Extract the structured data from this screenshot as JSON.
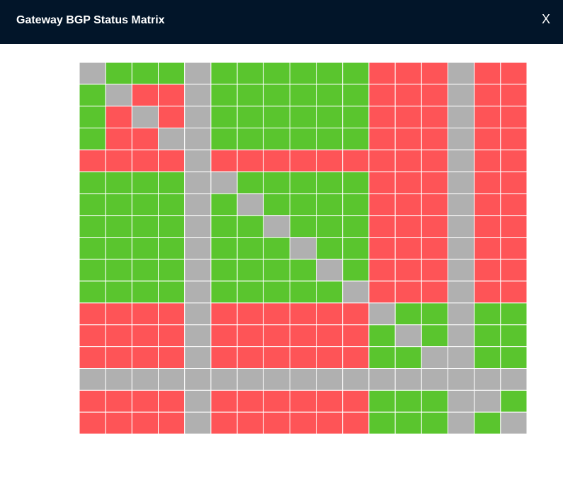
{
  "header": {
    "title": "Gateway BGP Status Matrix",
    "close": "X"
  },
  "matrix": {
    "rows": [
      [
        "#b0b0b0",
        "#5ac52e",
        "#5ac52e",
        "#5ac52e",
        "#b0b0b0",
        "#5ac52e",
        "#5ac52e",
        "#5ac52e",
        "#5ac52e",
        "#5ac52e",
        "#5ac52e",
        "#fe5457",
        "#fe5457",
        "#fe5457",
        "#b0b0b0",
        "#fe5457",
        "#fe5457"
      ],
      [
        "#5ac52e",
        "#b0b0b0",
        "#fe5457",
        "#fe5457",
        "#b0b0b0",
        "#5ac52e",
        "#5ac52e",
        "#5ac52e",
        "#5ac52e",
        "#5ac52e",
        "#5ac52e",
        "#fe5457",
        "#fe5457",
        "#fe5457",
        "#b0b0b0",
        "#fe5457",
        "#fe5457"
      ],
      [
        "#5ac52e",
        "#fe5457",
        "#b0b0b0",
        "#fe5457",
        "#b0b0b0",
        "#5ac52e",
        "#5ac52e",
        "#5ac52e",
        "#5ac52e",
        "#5ac52e",
        "#5ac52e",
        "#fe5457",
        "#fe5457",
        "#fe5457",
        "#b0b0b0",
        "#fe5457",
        "#fe5457"
      ],
      [
        "#5ac52e",
        "#fe5457",
        "#fe5457",
        "#b0b0b0",
        "#b0b0b0",
        "#5ac52e",
        "#5ac52e",
        "#5ac52e",
        "#5ac52e",
        "#5ac52e",
        "#5ac52e",
        "#fe5457",
        "#fe5457",
        "#fe5457",
        "#b0b0b0",
        "#fe5457",
        "#fe5457"
      ],
      [
        "#fe5457",
        "#fe5457",
        "#fe5457",
        "#fe5457",
        "#b0b0b0",
        "#fe5457",
        "#fe5457",
        "#fe5457",
        "#fe5457",
        "#fe5457",
        "#fe5457",
        "#fe5457",
        "#fe5457",
        "#fe5457",
        "#b0b0b0",
        "#fe5457",
        "#fe5457"
      ],
      [
        "#5ac52e",
        "#5ac52e",
        "#5ac52e",
        "#5ac52e",
        "#b0b0b0",
        "#b0b0b0",
        "#5ac52e",
        "#5ac52e",
        "#5ac52e",
        "#5ac52e",
        "#5ac52e",
        "#fe5457",
        "#fe5457",
        "#fe5457",
        "#b0b0b0",
        "#fe5457",
        "#fe5457"
      ],
      [
        "#5ac52e",
        "#5ac52e",
        "#5ac52e",
        "#5ac52e",
        "#b0b0b0",
        "#5ac52e",
        "#b0b0b0",
        "#5ac52e",
        "#5ac52e",
        "#5ac52e",
        "#5ac52e",
        "#fe5457",
        "#fe5457",
        "#fe5457",
        "#b0b0b0",
        "#fe5457",
        "#fe5457"
      ],
      [
        "#5ac52e",
        "#5ac52e",
        "#5ac52e",
        "#5ac52e",
        "#b0b0b0",
        "#5ac52e",
        "#5ac52e",
        "#b0b0b0",
        "#5ac52e",
        "#5ac52e",
        "#5ac52e",
        "#fe5457",
        "#fe5457",
        "#fe5457",
        "#b0b0b0",
        "#fe5457",
        "#fe5457"
      ],
      [
        "#5ac52e",
        "#5ac52e",
        "#5ac52e",
        "#5ac52e",
        "#b0b0b0",
        "#5ac52e",
        "#5ac52e",
        "#5ac52e",
        "#b0b0b0",
        "#5ac52e",
        "#5ac52e",
        "#fe5457",
        "#fe5457",
        "#fe5457",
        "#b0b0b0",
        "#fe5457",
        "#fe5457"
      ],
      [
        "#5ac52e",
        "#5ac52e",
        "#5ac52e",
        "#5ac52e",
        "#b0b0b0",
        "#5ac52e",
        "#5ac52e",
        "#5ac52e",
        "#5ac52e",
        "#b0b0b0",
        "#5ac52e",
        "#fe5457",
        "#fe5457",
        "#fe5457",
        "#b0b0b0",
        "#fe5457",
        "#fe5457"
      ],
      [
        "#5ac52e",
        "#5ac52e",
        "#5ac52e",
        "#5ac52e",
        "#b0b0b0",
        "#5ac52e",
        "#5ac52e",
        "#5ac52e",
        "#5ac52e",
        "#5ac52e",
        "#b0b0b0",
        "#fe5457",
        "#fe5457",
        "#fe5457",
        "#b0b0b0",
        "#fe5457",
        "#fe5457"
      ],
      [
        "#fe5457",
        "#fe5457",
        "#fe5457",
        "#fe5457",
        "#b0b0b0",
        "#fe5457",
        "#fe5457",
        "#fe5457",
        "#fe5457",
        "#fe5457",
        "#fe5457",
        "#b0b0b0",
        "#5ac52e",
        "#5ac52e",
        "#b0b0b0",
        "#5ac52e",
        "#5ac52e"
      ],
      [
        "#fe5457",
        "#fe5457",
        "#fe5457",
        "#fe5457",
        "#b0b0b0",
        "#fe5457",
        "#fe5457",
        "#fe5457",
        "#fe5457",
        "#fe5457",
        "#fe5457",
        "#5ac52e",
        "#b0b0b0",
        "#5ac52e",
        "#b0b0b0",
        "#5ac52e",
        "#5ac52e"
      ],
      [
        "#fe5457",
        "#fe5457",
        "#fe5457",
        "#fe5457",
        "#b0b0b0",
        "#fe5457",
        "#fe5457",
        "#fe5457",
        "#fe5457",
        "#fe5457",
        "#fe5457",
        "#5ac52e",
        "#5ac52e",
        "#b0b0b0",
        "#b0b0b0",
        "#5ac52e",
        "#5ac52e"
      ],
      [
        "#b0b0b0",
        "#b0b0b0",
        "#b0b0b0",
        "#b0b0b0",
        "#b0b0b0",
        "#b0b0b0",
        "#b0b0b0",
        "#b0b0b0",
        "#b0b0b0",
        "#b0b0b0",
        "#b0b0b0",
        "#b0b0b0",
        "#b0b0b0",
        "#b0b0b0",
        "#b0b0b0",
        "#b0b0b0",
        "#b0b0b0"
      ],
      [
        "#fe5457",
        "#fe5457",
        "#fe5457",
        "#fe5457",
        "#b0b0b0",
        "#fe5457",
        "#fe5457",
        "#fe5457",
        "#fe5457",
        "#fe5457",
        "#fe5457",
        "#5ac52e",
        "#5ac52e",
        "#5ac52e",
        "#b0b0b0",
        "#b0b0b0",
        "#5ac52e"
      ],
      [
        "#fe5457",
        "#fe5457",
        "#fe5457",
        "#fe5457",
        "#b0b0b0",
        "#fe5457",
        "#fe5457",
        "#fe5457",
        "#fe5457",
        "#fe5457",
        "#fe5457",
        "#5ac52e",
        "#5ac52e",
        "#5ac52e",
        "#b0b0b0",
        "#5ac52e",
        "#b0b0b0"
      ]
    ]
  }
}
